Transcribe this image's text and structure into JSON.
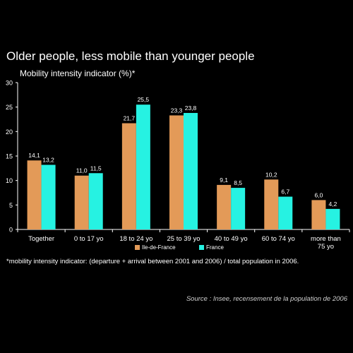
{
  "title": "Older people, less mobile than younger people",
  "subtitle": "Mobility intensity indicator (%)*",
  "footnote": "*mobility intensity indicator: (departure + arrival between 2001 and 2006) / total population in 2006.",
  "source": "Source : Insee, recensement de la population de 2006",
  "colors": {
    "ile_de_france": "#e39a58",
    "france": "#26f2e2",
    "axis": "#ffffff",
    "text": "#ffffff"
  },
  "chart_data": {
    "type": "bar",
    "categories": [
      "Together",
      "0 to 17 yo",
      "18 to 24 yo",
      "25 to 39 yo",
      "40 to 49 yo",
      "60 to 74 yo",
      "more than 75 yo"
    ],
    "category_lines": [
      [
        "Together"
      ],
      [
        "0 to 17 yo"
      ],
      [
        "18 to 24 yo"
      ],
      [
        "25 to 39 yo"
      ],
      [
        "40 to 49 yo"
      ],
      [
        "60 to 74 yo"
      ],
      [
        "more than",
        "75 yo"
      ]
    ],
    "series": [
      {
        "name": "Ile-de-France",
        "values": [
          14.1,
          11.0,
          21.7,
          23.3,
          9.1,
          10.2,
          6.0
        ],
        "labels": [
          "14,1",
          "11,0",
          "21,7",
          "23,3",
          "9,1",
          "10,2",
          "6,0"
        ]
      },
      {
        "name": "France",
        "values": [
          13.2,
          11.5,
          25.5,
          23.8,
          8.5,
          6.7,
          4.2
        ],
        "labels": [
          "13,2",
          "11,5",
          "25,5",
          "23,8",
          "8,5",
          "6,7",
          "4,2"
        ]
      }
    ],
    "y_ticks": [
      0,
      5,
      10,
      15,
      20,
      25,
      30
    ],
    "ylim": [
      0,
      30
    ],
    "grid": false,
    "legend_position": "bottom"
  }
}
